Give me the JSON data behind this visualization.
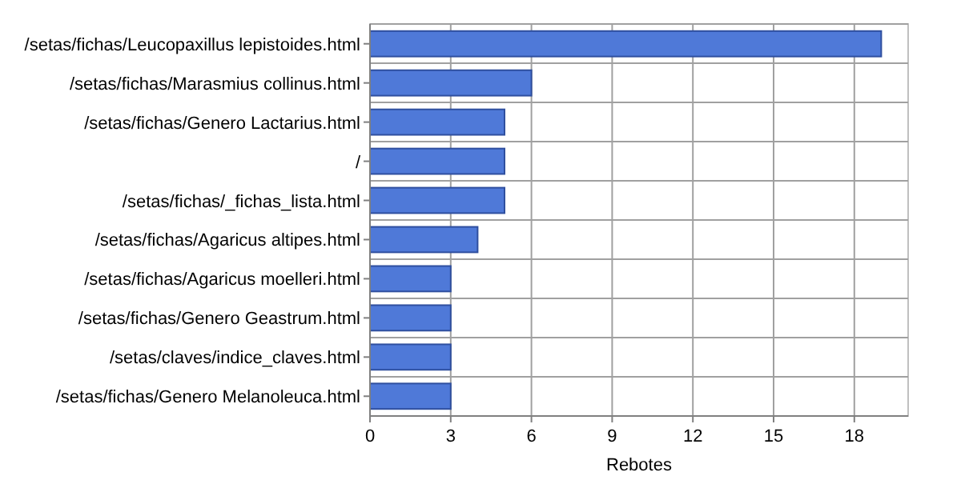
{
  "chart_data": {
    "type": "bar",
    "orientation": "horizontal",
    "xlabel": "Rebotes",
    "categories": [
      "/setas/fichas/Leucopaxillus lepistoides.html",
      "/setas/fichas/Marasmius collinus.html",
      "/setas/fichas/Genero Lactarius.html",
      "/",
      "/setas/fichas/_fichas_lista.html",
      "/setas/fichas/Agaricus altipes.html",
      "/setas/fichas/Agaricus moelleri.html",
      "/setas/fichas/Genero Geastrum.html",
      "/setas/claves/indice_claves.html",
      "/setas/fichas/Genero Melanoleuca.html"
    ],
    "values": [
      19,
      6,
      5,
      5,
      5,
      4,
      3,
      3,
      3,
      3
    ],
    "color": "#4f79d8",
    "xlim": [
      0,
      20
    ],
    "xticks": [
      0,
      3,
      6,
      9,
      12,
      15,
      18
    ],
    "grid": true
  }
}
